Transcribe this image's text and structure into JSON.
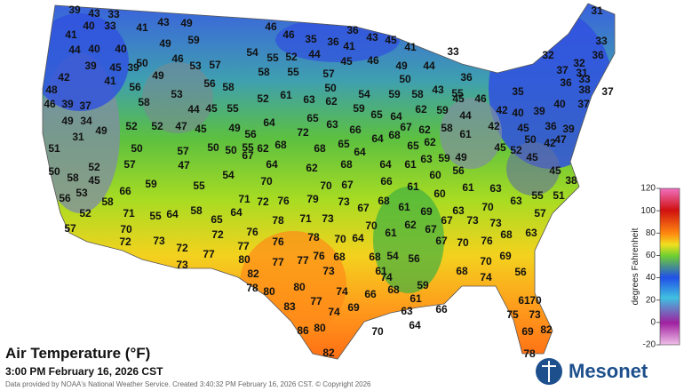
{
  "header": {
    "title": "Air Temperature (°F)",
    "subtitle": "3:00 PM February 16, 2026 CST",
    "credit": "Data provided by NOAA's National Weather Service. Created 3:40:32 PM February 16, 2026 CST. © Copyright 2026",
    "logo": "Mesonet"
  },
  "colorbar": {
    "label": "degrees Fahrenheit",
    "lim": [
      -20,
      120
    ],
    "ticks": [
      -20,
      0,
      20,
      40,
      60,
      80,
      100,
      120
    ]
  },
  "stations": [
    39,
    43,
    33,
    40,
    33,
    41,
    41,
    43,
    49,
    40,
    49,
    59,
    46,
    46,
    35,
    36,
    36,
    43,
    45,
    41,
    33,
    31,
    44,
    40,
    50,
    46,
    53,
    57,
    54,
    55,
    52,
    44,
    41,
    45,
    46,
    49,
    44,
    50,
    43,
    55,
    36,
    32,
    33,
    36,
    32,
    42,
    39,
    45,
    39,
    49,
    57,
    50,
    58,
    55,
    58,
    56,
    58,
    53,
    41,
    56,
    37,
    31,
    36,
    33,
    38,
    37,
    35,
    48,
    46,
    39,
    37,
    52,
    61,
    63,
    62,
    54,
    59,
    58,
    45,
    46,
    42,
    40,
    39,
    40,
    37,
    44,
    45,
    55,
    59,
    65,
    64,
    62,
    59,
    44,
    49,
    34,
    49,
    52,
    52,
    47,
    45,
    49,
    64,
    65,
    63,
    67,
    62,
    58,
    42,
    45,
    50,
    36,
    39,
    31,
    72,
    66,
    64,
    68,
    56,
    55,
    51,
    50,
    57,
    50,
    50,
    67,
    62,
    68,
    65,
    65,
    62,
    61,
    49,
    56,
    60,
    63,
    61,
    64,
    64,
    68,
    59,
    45,
    52,
    42,
    47,
    45,
    57,
    47,
    64,
    62,
    68,
    50,
    52,
    45,
    58,
    53,
    56,
    66,
    59,
    55,
    54,
    70,
    70,
    67,
    66,
    61,
    60,
    61,
    63,
    55,
    51,
    38,
    45,
    52,
    57,
    58,
    71,
    55,
    64,
    58,
    65,
    64,
    71,
    72,
    76,
    79,
    73,
    67,
    68,
    61,
    69,
    63,
    70,
    63,
    57,
    70,
    72,
    73,
    72,
    76,
    78,
    71,
    73,
    70,
    61,
    62,
    67,
    67,
    73,
    73,
    68,
    63,
    72,
    77,
    76,
    78,
    70,
    64,
    67,
    70,
    76,
    77,
    73,
    80,
    77,
    77,
    76,
    68,
    68,
    54,
    56,
    70,
    69,
    61,
    73,
    68,
    74,
    56,
    82,
    78,
    80,
    80,
    74,
    74,
    66,
    68,
    59,
    61,
    66,
    63,
    64,
    70,
    83,
    77,
    69,
    74,
    80,
    86,
    82,
    61,
    70,
    75,
    73,
    69,
    82,
    78
  ]
}
